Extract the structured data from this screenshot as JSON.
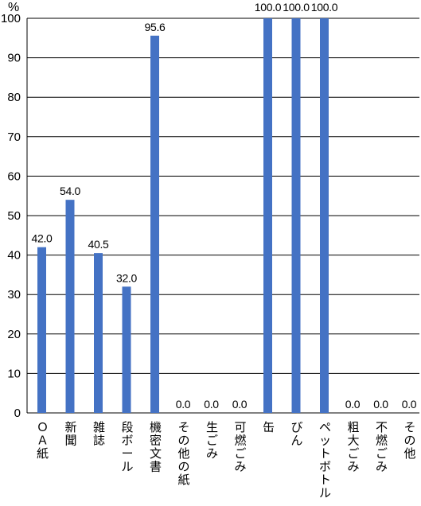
{
  "chart_data": {
    "type": "bar",
    "title": "",
    "xlabel": "",
    "ylabel": "",
    "y_unit": "%",
    "ylim": [
      0,
      100
    ],
    "y_ticks": [
      0,
      10,
      20,
      30,
      40,
      50,
      60,
      70,
      80,
      90,
      100
    ],
    "grid": true,
    "legend": "none",
    "bar_color": "#4472c4",
    "categories": [
      "ＯＡ紙",
      "新聞",
      "雑誌",
      "段ボール",
      "機密文書",
      "その他の紙",
      "生ごみ",
      "可燃ごみ",
      "缶",
      "びん",
      "ペットボトル",
      "粗大ごみ",
      "不燃ごみ",
      "その他"
    ],
    "values": [
      42.0,
      54.0,
      40.5,
      32.0,
      95.6,
      0.0,
      0.0,
      0.0,
      100.0,
      100.0,
      100.0,
      0.0,
      0.0,
      0.0
    ],
    "value_labels": [
      "42.0",
      "54.0",
      "40.5",
      "32.0",
      "95.6",
      "0.0",
      "0.0",
      "0.0",
      "100.0",
      "100.0",
      "100.0",
      "0.0",
      "0.0",
      "0.0"
    ]
  }
}
